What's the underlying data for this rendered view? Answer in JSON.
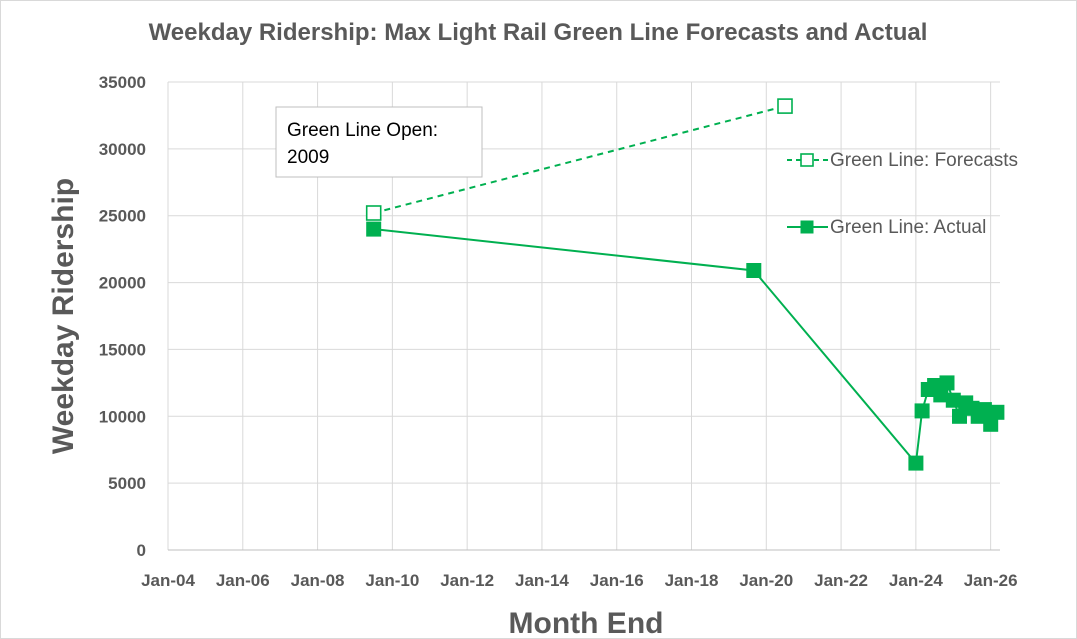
{
  "chart_data": {
    "type": "line",
    "title": "Weekday Ridership: Max Light Rail Green Line Forecasts and Actual",
    "xlabel": "Month End",
    "ylabel": "Weekday Ridership",
    "xlim": [
      "2004-01",
      "2026-04"
    ],
    "ylim": [
      0,
      35000
    ],
    "y_ticks": [
      0,
      5000,
      10000,
      15000,
      20000,
      25000,
      30000,
      35000
    ],
    "y_tick_labels": [
      "0",
      "5000",
      "10000",
      "15000",
      "20000",
      "25000",
      "30000",
      "35000"
    ],
    "x_ticks": [
      "2004-01",
      "2006-01",
      "2008-01",
      "2010-01",
      "2012-01",
      "2014-01",
      "2016-01",
      "2018-01",
      "2020-01",
      "2022-01",
      "2024-01",
      "2026-01"
    ],
    "x_tick_labels": [
      "Jan-04",
      "Jan-06",
      "Jan-08",
      "Jan-10",
      "Jan-12",
      "Jan-14",
      "Jan-16",
      "Jan-18",
      "Jan-20",
      "Jan-22",
      "Jan-24",
      "Jan-26"
    ],
    "grid": true,
    "legend_position": "right",
    "annotation": {
      "lines": [
        "Green Line Open:",
        "2009"
      ]
    },
    "series": [
      {
        "name": "Green Line: Forecasts",
        "style": "dashed",
        "marker": "hollow-square",
        "color": "#00b050",
        "points": [
          {
            "x": "2009-07",
            "y": 25200
          },
          {
            "x": "2020-07",
            "y": 33200
          }
        ]
      },
      {
        "name": "Green Line: Actual",
        "style": "solid",
        "marker": "filled-square",
        "color": "#00b050",
        "points": [
          {
            "x": "2009-07",
            "y": 24000
          },
          {
            "x": "2019-09",
            "y": 20900
          },
          {
            "x": "2024-01",
            "y": 6500
          },
          {
            "x": "2024-03",
            "y": 10400
          },
          {
            "x": "2024-05",
            "y": 12000
          },
          {
            "x": "2024-07",
            "y": 12300
          },
          {
            "x": "2024-09",
            "y": 11600
          },
          {
            "x": "2024-11",
            "y": 12500
          },
          {
            "x": "2025-01",
            "y": 11200
          },
          {
            "x": "2025-03",
            "y": 10000
          },
          {
            "x": "2025-05",
            "y": 11000
          },
          {
            "x": "2025-07",
            "y": 10600
          },
          {
            "x": "2025-09",
            "y": 10000
          },
          {
            "x": "2025-11",
            "y": 10500
          },
          {
            "x": "2026-01",
            "y": 9400
          },
          {
            "x": "2026-03",
            "y": 10300
          }
        ]
      }
    ]
  }
}
